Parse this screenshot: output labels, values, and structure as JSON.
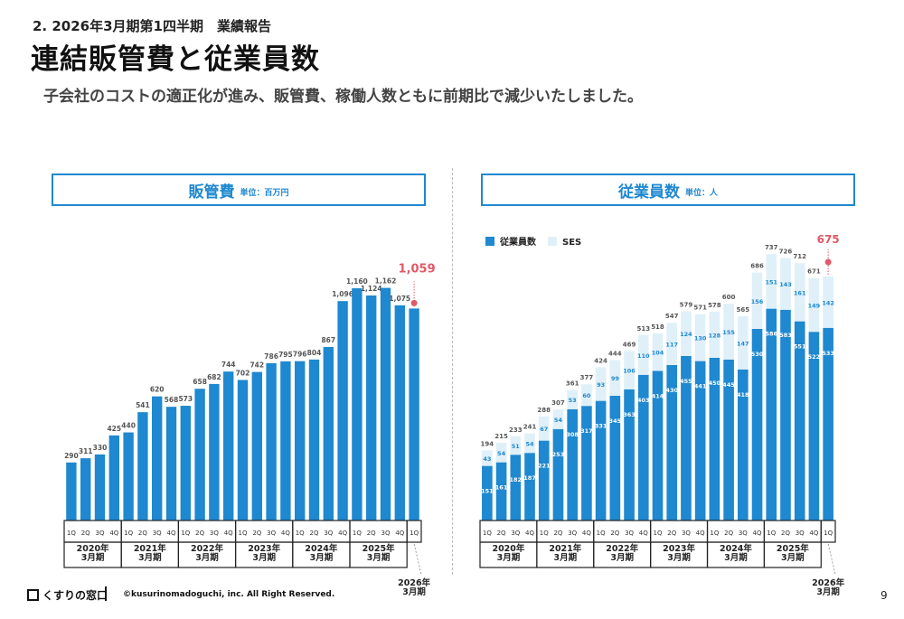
{
  "header": {
    "section": "2. 2026年3月期第1四半期　業績報告",
    "title": "連結販管費と従業員数",
    "lead": "子会社のコストの適正化が進み、販管費、稼働人数ともに前期比で減少いたしました。"
  },
  "footer": {
    "logo": "くすりの窓口",
    "copyright": "©kusurinomadoguchi, inc. All Right Reserved.",
    "page": "9"
  },
  "colors": {
    "bar": "#1e88d0",
    "ses": "#dff0f9",
    "highlight": "#e05a67",
    "frame": "#1e88d0"
  },
  "chart_data": [
    {
      "type": "bar",
      "title": "販管費",
      "unit_label": "単位：百万円",
      "quarters": [
        "1Q",
        "2Q",
        "3Q",
        "4Q",
        "1Q",
        "2Q",
        "3Q",
        "4Q",
        "1Q",
        "2Q",
        "3Q",
        "4Q",
        "1Q",
        "2Q",
        "3Q",
        "4Q",
        "1Q",
        "2Q",
        "3Q",
        "4Q",
        "1Q",
        "2Q",
        "3Q",
        "4Q",
        "1Q"
      ],
      "year_groups": [
        {
          "label": "2020年\n3月期",
          "count": 4
        },
        {
          "label": "2021年\n3月期",
          "count": 4
        },
        {
          "label": "2022年\n3月期",
          "count": 4
        },
        {
          "label": "2023年\n3月期",
          "count": 4
        },
        {
          "label": "2024年\n3月期",
          "count": 4
        },
        {
          "label": "2025年\n3月期",
          "count": 4
        },
        {
          "label": "2026年\n3月期",
          "count": 1
        }
      ],
      "values": [
        290,
        311,
        330,
        425,
        440,
        541,
        620,
        568,
        573,
        658,
        682,
        744,
        702,
        742,
        786,
        795,
        796,
        804,
        867,
        1096,
        1160,
        1124,
        1162,
        1075,
        1059
      ],
      "value_labels": [
        "290",
        "311",
        "330",
        "425",
        "440",
        "541",
        "620",
        "568",
        "573",
        "658",
        "682",
        "744",
        "702",
        "742",
        "786",
        "795",
        "796",
        "804",
        "867",
        "1,096",
        "1,160",
        "1,124",
        "1,162",
        "1,075",
        "1,059"
      ],
      "highlight_index": 24,
      "ylim": [
        0,
        1300
      ]
    },
    {
      "type": "bar",
      "stacked": true,
      "title": "従業員数",
      "unit_label": "単位：人",
      "quarters": [
        "1Q",
        "2Q",
        "3Q",
        "4Q",
        "1Q",
        "2Q",
        "3Q",
        "4Q",
        "1Q",
        "2Q",
        "3Q",
        "4Q",
        "1Q",
        "2Q",
        "3Q",
        "4Q",
        "1Q",
        "2Q",
        "3Q",
        "4Q",
        "1Q",
        "2Q",
        "3Q",
        "4Q",
        "1Q"
      ],
      "year_groups": [
        {
          "label": "2020年\n3月期",
          "count": 4
        },
        {
          "label": "2021年\n3月期",
          "count": 4
        },
        {
          "label": "2022年\n3月期",
          "count": 4
        },
        {
          "label": "2023年\n3月期",
          "count": 4
        },
        {
          "label": "2024年\n3月期",
          "count": 4
        },
        {
          "label": "2025年\n3月期",
          "count": 4
        },
        {
          "label": "2026年\n3月期",
          "count": 1
        }
      ],
      "series": [
        {
          "name": "従業員数",
          "values": [
            151,
            161,
            182,
            187,
            221,
            253,
            308,
            317,
            331,
            345,
            363,
            403,
            414,
            430,
            455,
            441,
            450,
            445,
            418,
            530,
            586,
            583,
            551,
            522,
            533
          ]
        },
        {
          "name": "SES",
          "values": [
            43,
            54,
            51,
            54,
            67,
            54,
            53,
            60,
            93,
            99,
            106,
            110,
            104,
            117,
            124,
            130,
            128,
            155,
            147,
            156,
            151,
            143,
            161,
            149,
            142
          ]
        }
      ],
      "totals": [
        194,
        215,
        233,
        241,
        288,
        307,
        361,
        377,
        424,
        444,
        469,
        513,
        518,
        547,
        579,
        571,
        578,
        600,
        565,
        686,
        737,
        726,
        712,
        671,
        675
      ],
      "highlight_index": 24,
      "ylim": [
        0,
        800
      ]
    }
  ]
}
